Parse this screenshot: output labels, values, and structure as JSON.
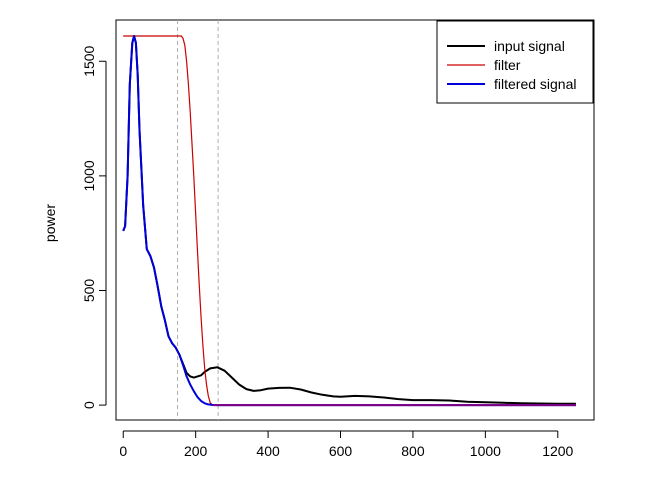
{
  "chart_data": {
    "type": "line",
    "title": "",
    "xlabel": "",
    "ylabel": "power",
    "xlim": [
      -20,
      1300
    ],
    "ylim": [
      -65,
      1680
    ],
    "x_ticks": [
      0,
      200,
      400,
      600,
      800,
      1000,
      1200
    ],
    "y_ticks": [
      0,
      500,
      1000,
      1500
    ],
    "vlines": [
      150,
      262
    ],
    "legend_position": "top-right",
    "series": [
      {
        "name": "input signal",
        "color": "#000000",
        "x": [
          0,
          5,
          12,
          18,
          25,
          30,
          35,
          40,
          45,
          55,
          65,
          75,
          85,
          95,
          105,
          115,
          125,
          135,
          145,
          155,
          165,
          175,
          185,
          195,
          205,
          215,
          225,
          240,
          260,
          280,
          300,
          320,
          340,
          360,
          380,
          400,
          430,
          460,
          490,
          520,
          550,
          580,
          600,
          640,
          680,
          720,
          760,
          800,
          850,
          900,
          950,
          1000,
          1050,
          1100,
          1150,
          1200,
          1250
        ],
        "y": [
          760,
          780,
          1000,
          1400,
          1580,
          1610,
          1580,
          1440,
          1200,
          870,
          680,
          650,
          600,
          520,
          430,
          370,
          300,
          270,
          250,
          220,
          180,
          140,
          125,
          120,
          125,
          130,
          145,
          160,
          165,
          150,
          120,
          90,
          70,
          62,
          65,
          72,
          75,
          76,
          68,
          55,
          45,
          38,
          36,
          40,
          38,
          33,
          26,
          22,
          22,
          20,
          15,
          12,
          10,
          8,
          7,
          6,
          6
        ]
      },
      {
        "name": "filter",
        "color": "#cc0000",
        "x": [
          0,
          50,
          100,
          150,
          160,
          165,
          170,
          175,
          180,
          185,
          190,
          195,
          200,
          205,
          210,
          215,
          220,
          225,
          230,
          235,
          240,
          245,
          250,
          300,
          400,
          600,
          800,
          1000,
          1250
        ],
        "y": [
          1610,
          1610,
          1610,
          1610,
          1610,
          1600,
          1570,
          1500,
          1400,
          1280,
          1140,
          990,
          830,
          670,
          520,
          380,
          260,
          160,
          90,
          40,
          10,
          2,
          0,
          0,
          0,
          0,
          0,
          0,
          0
        ]
      },
      {
        "name": "filtered signal",
        "color": "#0000dd",
        "x": [
          0,
          5,
          12,
          18,
          25,
          30,
          35,
          40,
          45,
          55,
          65,
          75,
          85,
          95,
          105,
          115,
          125,
          135,
          145,
          155,
          165,
          175,
          185,
          195,
          205,
          215,
          225,
          235,
          245,
          260,
          300,
          400,
          600,
          800,
          1000,
          1250
        ],
        "y": [
          760,
          780,
          1000,
          1400,
          1580,
          1610,
          1580,
          1440,
          1200,
          870,
          680,
          650,
          600,
          520,
          430,
          370,
          300,
          270,
          250,
          220,
          175,
          125,
          90,
          60,
          35,
          18,
          8,
          3,
          1,
          0,
          0,
          0,
          0,
          0,
          0,
          0
        ]
      }
    ],
    "purple_overlap_color": "#800080"
  }
}
